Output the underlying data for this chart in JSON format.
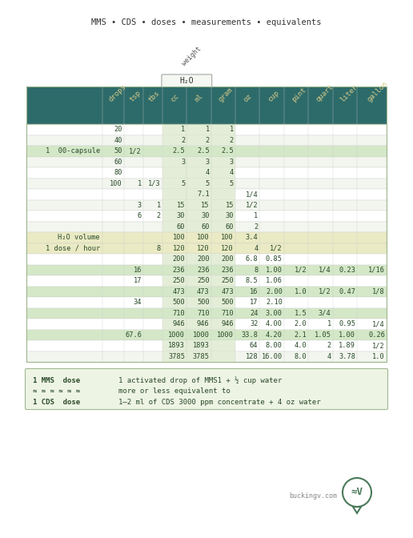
{
  "title": "MMS • CDS • doses • measurements • equivalents",
  "header_cols": [
    "drops",
    "tsp",
    "tbs",
    "cc",
    "ml",
    "gram",
    "oz",
    "cup",
    "pint",
    "quart",
    "liter",
    "gallon"
  ],
  "header_bg": "#2d6b6a",
  "header_text_color": "#d4c98a",
  "h2o_label": "H₂O",
  "weight_label": "weight",
  "row_label_map": {
    "2": "1  00-capsule",
    "10": "H₂O volume",
    "11": "1 dose / hour"
  },
  "rows": [
    [
      "20",
      "",
      "",
      "1",
      "1",
      "1",
      "",
      "",
      "",
      "",
      "",
      ""
    ],
    [
      "40",
      "",
      "",
      "2",
      "2",
      "2",
      "",
      "",
      "",
      "",
      "",
      ""
    ],
    [
      "50",
      "1/2",
      "",
      "2.5",
      "2.5",
      "2.5",
      "",
      "",
      "",
      "",
      "",
      ""
    ],
    [
      "60",
      "",
      "",
      "3",
      "3",
      "3",
      "",
      "",
      "",
      "",
      "",
      ""
    ],
    [
      "80",
      "",
      "",
      "",
      "4",
      "4",
      "",
      "",
      "",
      "",
      "",
      ""
    ],
    [
      "100",
      "1",
      "1/3",
      "5",
      "5",
      "5",
      "",
      "",
      "",
      "",
      "",
      ""
    ],
    [
      "",
      "",
      "",
      "",
      "7.1",
      "",
      "1/4",
      "",
      "",
      "",
      "",
      ""
    ],
    [
      "",
      "3",
      "1",
      "15",
      "15",
      "15",
      "1/2",
      "",
      "",
      "",
      "",
      ""
    ],
    [
      "",
      "6",
      "2",
      "30",
      "30",
      "30",
      "1",
      "",
      "",
      "",
      "",
      ""
    ],
    [
      "",
      "",
      "",
      "60",
      "60",
      "60",
      "2",
      "",
      "",
      "",
      "",
      ""
    ],
    [
      "",
      "",
      "",
      "100",
      "100",
      "100",
      "3.4",
      "",
      "",
      "",
      "",
      ""
    ],
    [
      "",
      "",
      "8",
      "120",
      "120",
      "120",
      "4",
      "1/2",
      "",
      "",
      "",
      ""
    ],
    [
      "",
      "",
      "",
      "200",
      "200",
      "200",
      "6.8",
      "0.85",
      "",
      "",
      "",
      ""
    ],
    [
      "",
      "16",
      "",
      "236",
      "236",
      "236",
      "8",
      "1.00",
      "1/2",
      "1/4",
      "0.23",
      "1/16"
    ],
    [
      "",
      "17",
      "",
      "250",
      "250",
      "250",
      "8.5",
      "1.06",
      "",
      "",
      "",
      ""
    ],
    [
      "",
      "",
      "",
      "473",
      "473",
      "473",
      "16",
      "2.00",
      "1.0",
      "1/2",
      "0.47",
      "1/8"
    ],
    [
      "",
      "34",
      "",
      "500",
      "500",
      "500",
      "17",
      "2.10",
      "",
      "",
      "",
      ""
    ],
    [
      "",
      "",
      "",
      "710",
      "710",
      "710",
      "24",
      "3.00",
      "1.5",
      "3/4",
      "",
      ""
    ],
    [
      "",
      "",
      "",
      "946",
      "946",
      "946",
      "32",
      "4.00",
      "2.0",
      "1",
      "0.95",
      "1/4"
    ],
    [
      "",
      "67.6",
      "",
      "1000",
      "1000",
      "1000",
      "33.8",
      "4.20",
      "2.1",
      "1.05",
      "1.00",
      "0.26"
    ],
    [
      "",
      "",
      "",
      "1893",
      "1893",
      "",
      "64",
      "8.00",
      "4.0",
      "2",
      "1.89",
      "1/2"
    ],
    [
      "",
      "",
      "",
      "3785",
      "3785",
      "",
      "128",
      "16.00",
      "8.0",
      "4",
      "3.78",
      "1.0"
    ]
  ],
  "row_highlights": {
    "2": "#d4e8c8",
    "10": "#eaeac4",
    "11": "#eaeac4",
    "13": "#d4e8c8",
    "15": "#d4e8c8",
    "17": "#d4e8c8",
    "19": "#d4e8c8"
  },
  "col_highlight_color": "#e4edd8",
  "footer_lines": [
    [
      "1 MMS  dose",
      "1 activated drop of MMS1 + ½ cup water"
    ],
    [
      "≈ ≈ ≈ ≈ ≈ ≈",
      "more or less equivalent to"
    ],
    [
      "1 CDS  dose",
      "1–2 ml of CDS 3000 ppm concentrate + 4 oz water"
    ]
  ],
  "footer_bg": "#eef4e4",
  "footer_border": "#a0b890",
  "logo_text": "≈V",
  "website": "buckingv.com",
  "bg_color": "#ffffff",
  "table_border": "#a0b890",
  "text_color": "#2a4a2a",
  "alt_row_color": "#f2f6ee",
  "normal_row_color": "#ffffff"
}
